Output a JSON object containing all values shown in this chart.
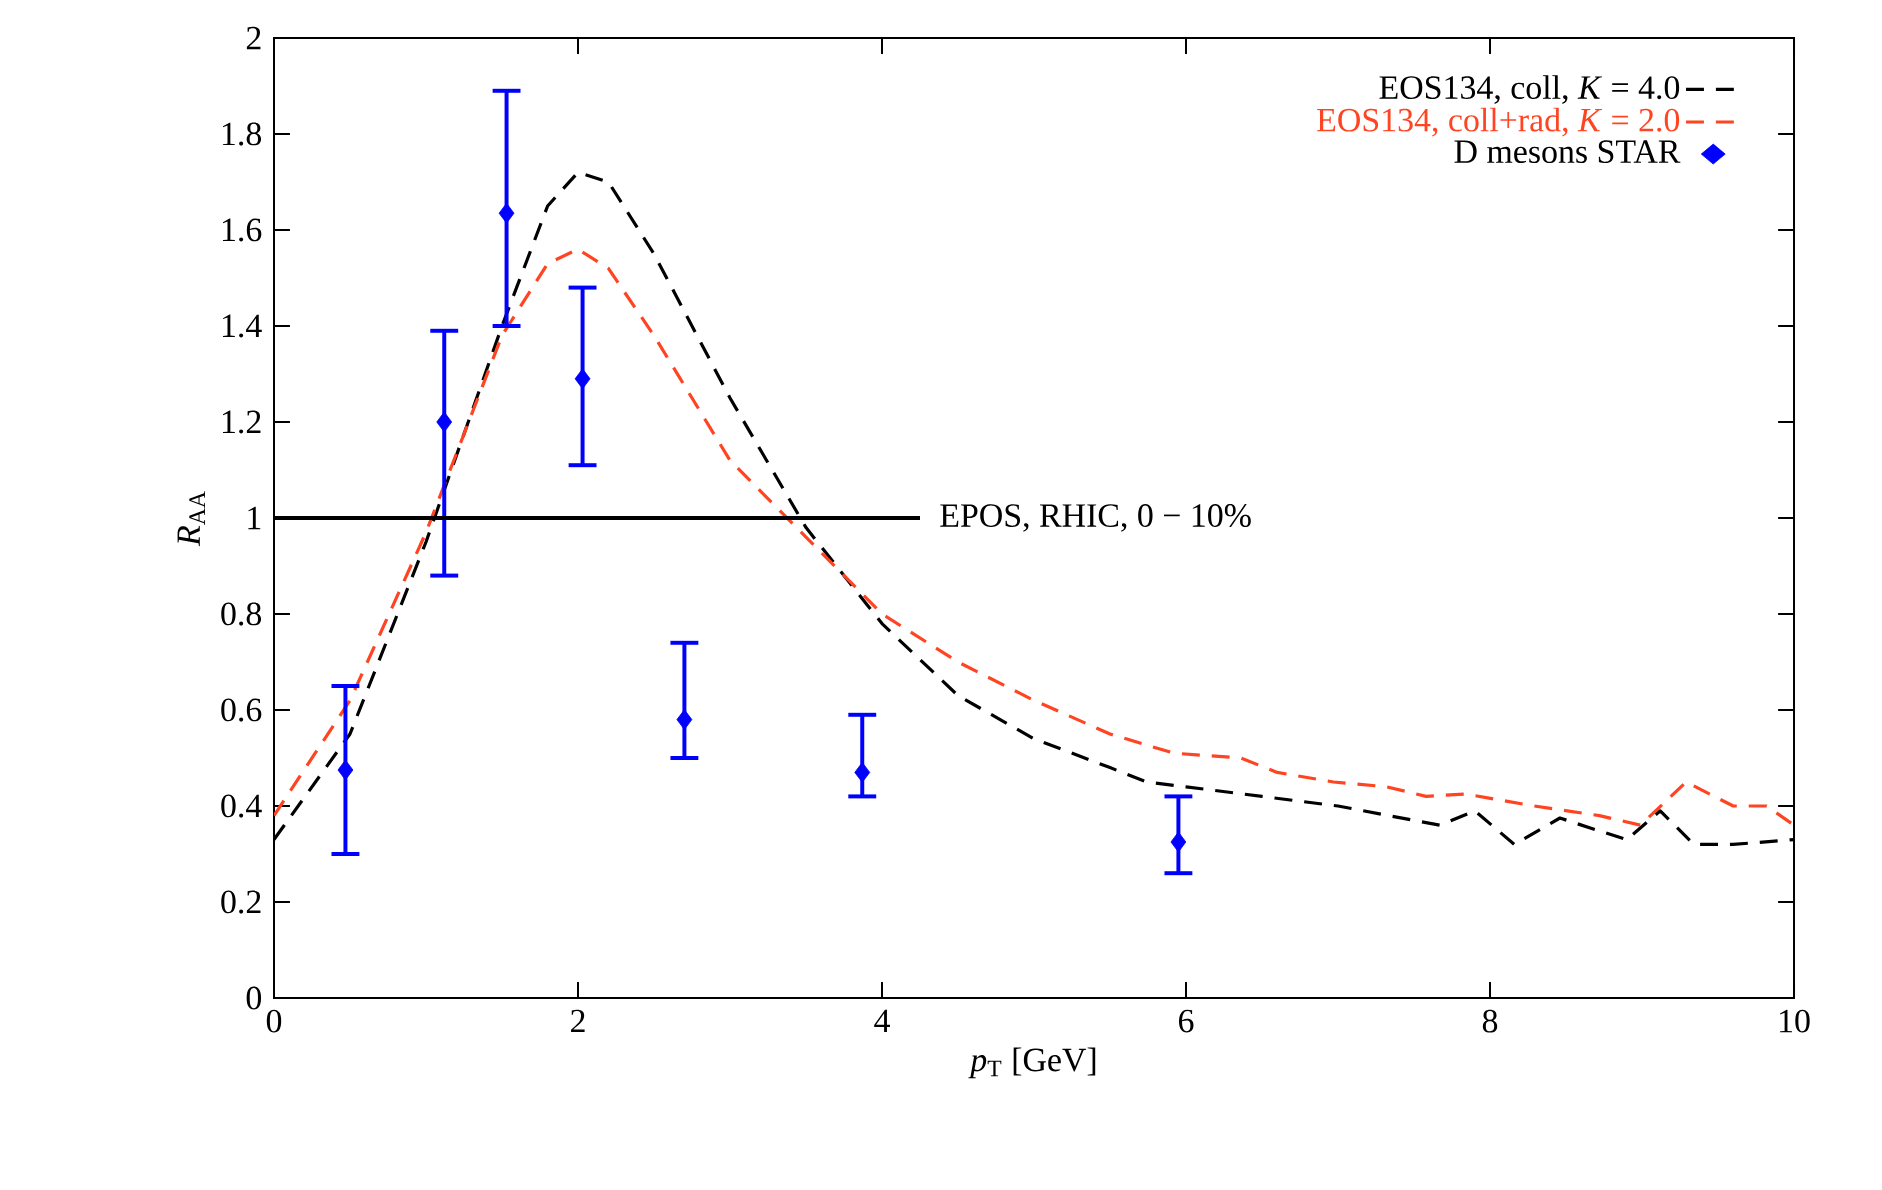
{
  "chart_data": {
    "type": "line",
    "xlabel": "*p*$_{T}$ [GeV]",
    "ylabel": "*R*$_{AA}$",
    "xlim": [
      0,
      10
    ],
    "ylim": [
      0,
      2
    ],
    "xticks": [
      0,
      2,
      4,
      6,
      8,
      10
    ],
    "yticks": [
      0,
      0.2,
      0.4,
      0.6,
      0.8,
      1,
      1.2,
      1.4,
      1.6,
      1.8,
      2
    ],
    "legend": "top right",
    "grid": false,
    "series": [
      {
        "name": "EOS134, coll, *K* = 4.0",
        "color": "#000000",
        "line_style": "dashed",
        "marker": "none",
        "x": [
          0,
          0.5,
          1,
          1.5,
          1.8,
          2,
          2.2,
          2.5,
          3,
          3.5,
          4,
          4.5,
          5,
          5.5,
          5.74,
          6,
          6.5,
          7,
          7.5,
          7.67,
          7.9,
          8.16,
          8.46,
          8.7,
          8.9,
          9.12,
          9.34,
          9.6,
          10
        ],
        "values": [
          0.33,
          0.55,
          0.95,
          1.4,
          1.65,
          1.72,
          1.7,
          1.55,
          1.25,
          0.98,
          0.78,
          0.63,
          0.54,
          0.48,
          0.45,
          0.44,
          0.42,
          0.4,
          0.37,
          0.36,
          0.39,
          0.32,
          0.375,
          0.35,
          0.33,
          0.39,
          0.32,
          0.32,
          0.33
        ]
      },
      {
        "name": "EOS134, coll+rad, *K* = 2.0",
        "color": "#ff4422",
        "line_style": "dashed",
        "marker": "none",
        "x": [
          0,
          0.5,
          1,
          1.5,
          1.8,
          2,
          2.2,
          2.5,
          3,
          3.5,
          4,
          4.5,
          5,
          5.5,
          5.92,
          6.36,
          6.6,
          6.97,
          7.32,
          7.58,
          7.84,
          8.29,
          8.72,
          8.99,
          9.29,
          9.6,
          9.82,
          10
        ],
        "values": [
          0.38,
          0.62,
          0.97,
          1.38,
          1.53,
          1.56,
          1.52,
          1.38,
          1.12,
          0.96,
          0.8,
          0.7,
          0.62,
          0.55,
          0.51,
          0.5,
          0.47,
          0.45,
          0.44,
          0.42,
          0.425,
          0.4,
          0.38,
          0.36,
          0.45,
          0.4,
          0.4,
          0.36
        ]
      },
      {
        "name": "D mesons STAR",
        "type": "scatter",
        "color": "#0000ff",
        "marker": "diamond",
        "x": [
          0.47,
          1.12,
          1.53,
          2.03,
          2.7,
          3.87,
          5.95
        ],
        "values": [
          0.475,
          1.2,
          1.635,
          1.29,
          0.58,
          0.47,
          0.325
        ],
        "errors": [
          [
            0.3,
            0.65
          ],
          [
            0.88,
            1.39
          ],
          [
            1.4,
            1.89
          ],
          [
            1.11,
            1.48
          ],
          [
            0.5,
            0.74
          ],
          [
            0.42,
            0.59
          ],
          [
            0.26,
            0.42
          ]
        ]
      },
      {
        "color": "#000000",
        "line_style": "solid",
        "marker": "none",
        "x": [
          0,
          4.25
        ],
        "values": [
          1,
          1
        ]
      }
    ],
    "annotations": [
      {
        "text": "EPOS, RHIC, 0 − 10%",
        "x": 4.3,
        "y": 1
      }
    ]
  }
}
